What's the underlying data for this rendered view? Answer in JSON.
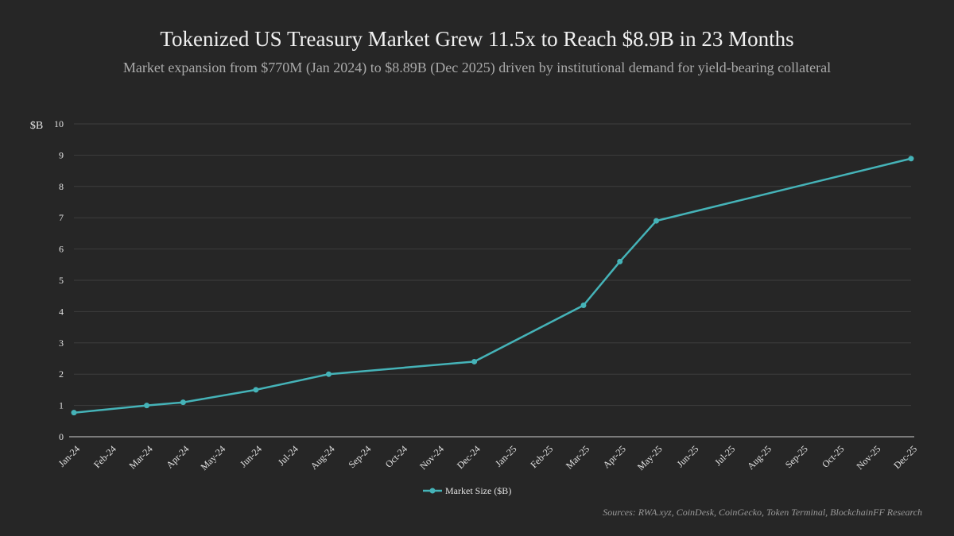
{
  "chart_data": {
    "type": "line",
    "title": "Tokenized US Treasury Market Grew 11.5x to Reach $8.9B in 23 Months",
    "subtitle": "Market expansion from $770M (Jan 2024) to $8.89B (Dec 2025) driven by institutional demand for yield-bearing collateral",
    "ylabel": "$B",
    "xlabel": "",
    "ylim": [
      0,
      10
    ],
    "yticks": [
      "0",
      "1",
      "2",
      "3",
      "4",
      "5",
      "6",
      "7",
      "8",
      "9",
      "10"
    ],
    "categories": [
      "Jan-24",
      "Feb-24",
      "Mar-24",
      "Apr-24",
      "May-24",
      "Jun-24",
      "Jul-24",
      "Aug-24",
      "Sep-24",
      "Oct-24",
      "Nov-24",
      "Dec-24",
      "Jan-25",
      "Feb-25",
      "Mar-25",
      "Apr-25",
      "May-25",
      "Jun-25",
      "Jul-25",
      "Aug-25",
      "Sep-25",
      "Oct-25",
      "Nov-25",
      "Dec-25"
    ],
    "series": [
      {
        "name": "Market Size ($B)",
        "points": [
          {
            "x": "Jan-24",
            "y": 0.77
          },
          {
            "x": "Mar-24",
            "y": 1.0
          },
          {
            "x": "Apr-24",
            "y": 1.1
          },
          {
            "x": "Jun-24",
            "y": 1.5
          },
          {
            "x": "Aug-24",
            "y": 2.0
          },
          {
            "x": "Dec-24",
            "y": 2.4
          },
          {
            "x": "Mar-25",
            "y": 4.2
          },
          {
            "x": "Apr-25",
            "y": 5.6
          },
          {
            "x": "May-25",
            "y": 6.9
          },
          {
            "x": "Dec-25",
            "y": 8.89
          }
        ]
      }
    ],
    "grid": true,
    "legend_position": "bottom",
    "colors": {
      "series": "#45b3b8",
      "grid": "#3d3d3d",
      "axis": "#d0d0d0"
    }
  },
  "footer": {
    "sources": "Sources: RWA.xyz, CoinDesk, CoinGecko, Token Terminal, BlockchainFF Research"
  }
}
